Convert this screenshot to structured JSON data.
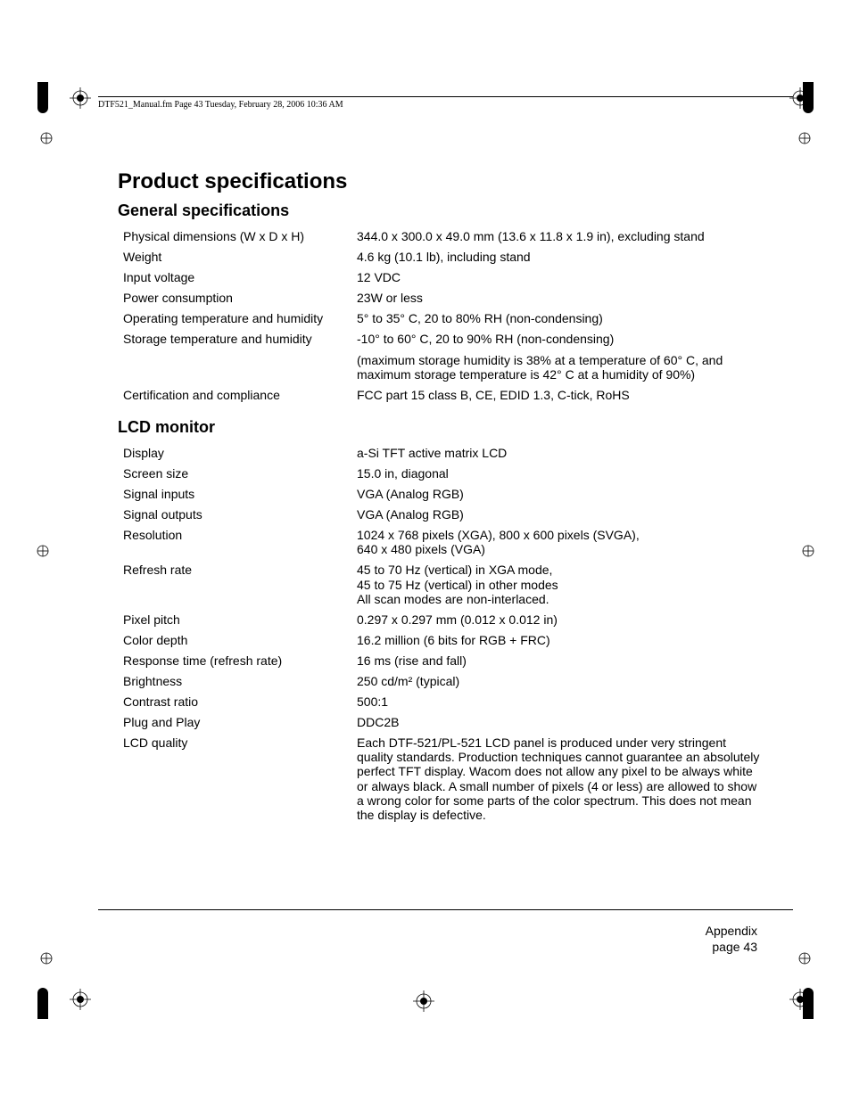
{
  "header": {
    "text": "DTF521_Manual.fm  Page 43  Tuesday, February 28, 2006  10:36 AM"
  },
  "title": "Product specifications",
  "sections": [
    {
      "heading": "General specifications",
      "rows": [
        {
          "label": "Physical dimensions (W x D x H)",
          "value": "344.0 x 300.0 x 49.0 mm (13.6 x 11.8 x 1.9 in), excluding stand"
        },
        {
          "label": "Weight",
          "value": "4.6 kg (10.1 lb), including stand"
        },
        {
          "label": "Input voltage",
          "value": "12 VDC"
        },
        {
          "label": "Power consumption",
          "value": "23W or less"
        },
        {
          "label": "Operating temperature and humidity",
          "value": "5° to 35° C, 20 to 80% RH (non-condensing)"
        },
        {
          "label": "Storage temperature and humidity",
          "value": "-10° to 60° C, 20 to 90% RH (non-condensing)"
        },
        {
          "label": "",
          "value": "(maximum storage humidity is 38% at a temperature of 60° C, and maximum storage temperature is 42° C at a humidity of 90%)"
        },
        {
          "label": "Certification and compliance",
          "value": "FCC part 15 class B, CE, EDID 1.3, C-tick, RoHS"
        }
      ]
    },
    {
      "heading": "LCD monitor",
      "rows": [
        {
          "label": "Display",
          "value": "a-Si TFT active matrix LCD"
        },
        {
          "label": "Screen size",
          "value": "15.0 in, diagonal"
        },
        {
          "label": "Signal inputs",
          "value": "VGA (Analog RGB)"
        },
        {
          "label": "Signal outputs",
          "value": "VGA (Analog RGB)"
        },
        {
          "label": "Resolution",
          "value": "1024 x 768 pixels (XGA), 800 x 600 pixels (SVGA),\n640 x 480 pixels (VGA)"
        },
        {
          "label": "Refresh rate",
          "value": "45 to 70 Hz (vertical) in XGA mode,\n45 to 75 Hz (vertical) in other modes\nAll scan modes are non-interlaced."
        },
        {
          "label": "Pixel pitch",
          "value": "0.297 x 0.297 mm (0.012 x 0.012 in)"
        },
        {
          "label": "Color depth",
          "value": "16.2 million (6 bits for RGB + FRC)"
        },
        {
          "label": "Response time (refresh rate)",
          "value": "16 ms (rise and fall)"
        },
        {
          "label": "Brightness",
          "value": "250 cd/m² (typical)"
        },
        {
          "label": "Contrast ratio",
          "value": "500:1"
        },
        {
          "label": "Plug and Play",
          "value": "DDC2B"
        },
        {
          "label": "LCD quality",
          "value": "Each DTF-521/PL-521 LCD panel is produced under very stringent quality standards.  Production techniques cannot guarantee an absolutely perfect TFT display.  Wacom does not allow any pixel to be always white or always black.  A small number of pixels (4 or less) are allowed to show a wrong color for some parts of the color spectrum.  This does not mean the display is defective."
        }
      ]
    }
  ],
  "footer": {
    "section": "Appendix",
    "page_label": "page  43"
  }
}
